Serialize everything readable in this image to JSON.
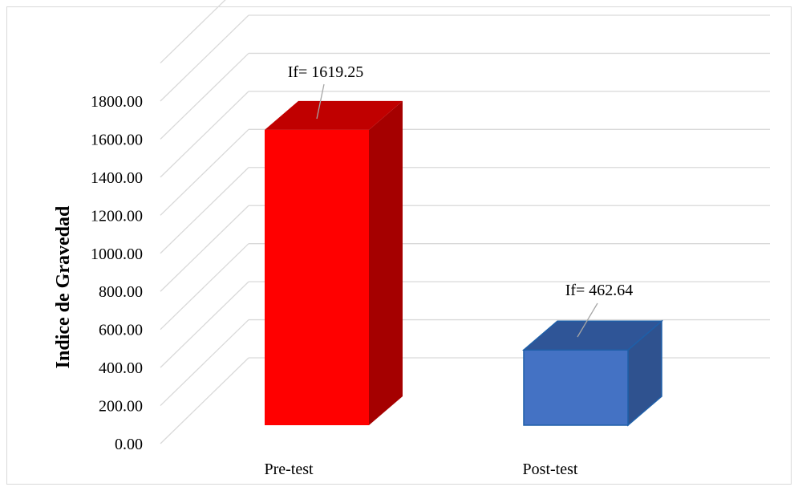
{
  "chart_data": {
    "type": "bar",
    "style": "3d-column",
    "categories": [
      "Pre-test",
      "Post-test"
    ],
    "values": [
      1619.25,
      462.64
    ],
    "data_labels": [
      "If= 1619.25",
      "If= 462.64"
    ],
    "ylabel": "Indice de Gravedad",
    "ylim": [
      0,
      1800
    ],
    "ytick_labels": [
      "0.00",
      "200.00",
      "400.00",
      "600.00",
      "800.00",
      "1000.00",
      "1200.00",
      "1400.00",
      "1600.00",
      "1800.00"
    ],
    "grid": true,
    "bar_colors": [
      {
        "front": "#ff0000",
        "side": "#a50000",
        "top": "#c00000"
      },
      {
        "front": "#4472c4",
        "side": "#2f528f",
        "top": "#2f5597"
      }
    ]
  }
}
